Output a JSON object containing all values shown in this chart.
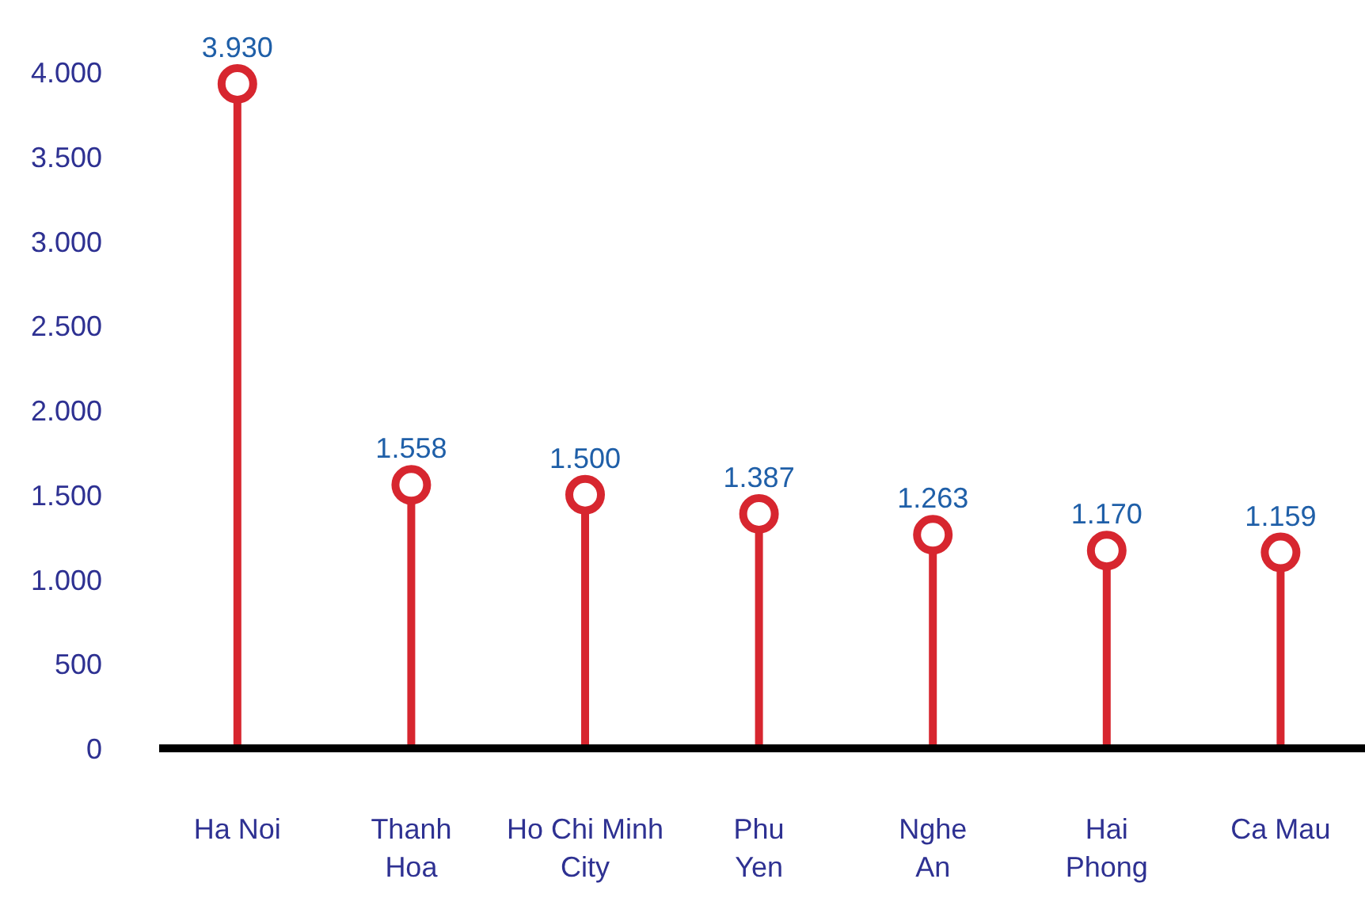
{
  "chart_data": {
    "type": "lollipop",
    "categories": [
      "Ha Noi",
      "Thanh\nHoa",
      "Ho Chi Minh\nCity",
      "Phu\nYen",
      "Nghe\nAn",
      "Hai\nPhong",
      "Ca Mau"
    ],
    "values": [
      3930,
      1558,
      1500,
      1387,
      1263,
      1170,
      1159
    ],
    "value_labels": [
      "3.930",
      "1.558",
      "1.500",
      "1.387",
      "1.263",
      "1.170",
      "1.159"
    ],
    "color": "#d7262f",
    "marker": "circle",
    "ylim": [
      0,
      4000
    ],
    "yticks": [
      {
        "value": 0,
        "label": "0"
      },
      {
        "value": 500,
        "label": "500"
      },
      {
        "value": 1000,
        "label": "1.000"
      },
      {
        "value": 1500,
        "label": "1.500"
      },
      {
        "value": 2000,
        "label": "2.000"
      },
      {
        "value": 2500,
        "label": "2.500"
      },
      {
        "value": 3000,
        "label": "3.000"
      },
      {
        "value": 3500,
        "label": "3.500"
      },
      {
        "value": 4000,
        "label": "4.000"
      }
    ],
    "grid": false
  }
}
